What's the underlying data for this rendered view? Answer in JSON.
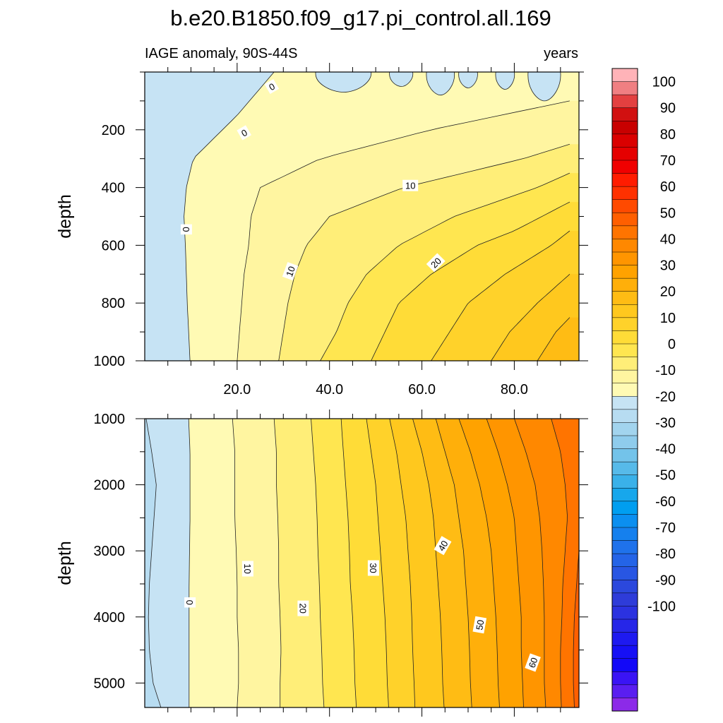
{
  "figure": {
    "title": "b.e20.B1850.f09_g17.pi_control.all.169",
    "left_subtitle": "IAGE anomaly, 90S-44S",
    "right_subtitle": "years"
  },
  "chart_data": [
    {
      "type": "heatmap",
      "name": "upper",
      "ylabel": "depth",
      "xlabel": "",
      "xlim": [
        0,
        94
      ],
      "ylim": [
        0,
        1000
      ],
      "y_inverted": true,
      "xticks": [
        20,
        40,
        60,
        80
      ],
      "xtick_labels": [
        "20.0",
        "40.0",
        "60.0",
        "80.0"
      ],
      "yticks": [
        200,
        400,
        600,
        800,
        1000
      ],
      "ytick_labels": [
        "200",
        "400",
        "600",
        "800",
        "1000"
      ],
      "contour_interval": 5,
      "contours": [
        {
          "level": 0,
          "depth": [
            0,
            150,
            300,
            400,
            500,
            600,
            700,
            800,
            900,
            1000
          ],
          "x": [
            28,
            20,
            10.5,
            9,
            8.5,
            8.8,
            9,
            9.2,
            9.5,
            9.8
          ]
        },
        {
          "level": 5,
          "depth": [
            100,
            200,
            300,
            400,
            500,
            600,
            700,
            800,
            900,
            1000
          ],
          "x": [
            92,
            62,
            38,
            25,
            23,
            22.5,
            21.5,
            21,
            20.5,
            20
          ]
        },
        {
          "level": 10,
          "depth": [
            250,
            300,
            400,
            500,
            600,
            700,
            800,
            900,
            1000
          ],
          "x": [
            92,
            82,
            56,
            40,
            35,
            32.5,
            31,
            30,
            29
          ]
        },
        {
          "level": 15,
          "depth": [
            350,
            400,
            500,
            600,
            700,
            800,
            900,
            1000
          ],
          "x": [
            92,
            85,
            67,
            55,
            48,
            44,
            41.5,
            38
          ]
        },
        {
          "level": 20,
          "depth": [
            450,
            550,
            600,
            700,
            800,
            900,
            1000
          ],
          "x": [
            92,
            80,
            72,
            62,
            55,
            52,
            49
          ]
        },
        {
          "level": 25,
          "depth": [
            550,
            600,
            700,
            800,
            900,
            1000
          ],
          "x": [
            92,
            88,
            78,
            70,
            66,
            62
          ]
        },
        {
          "level": 30,
          "depth": [
            700,
            800,
            900,
            1000
          ],
          "x": [
            92,
            85,
            79,
            75
          ]
        },
        {
          "level": 35,
          "depth": [
            850,
            900,
            1000
          ],
          "x": [
            92,
            89,
            85
          ]
        }
      ],
      "negative_patches": [
        {
          "x": [
            37,
            49
          ],
          "depth": [
            0,
            70
          ]
        },
        {
          "x": [
            53,
            58
          ],
          "depth": [
            0,
            50
          ]
        },
        {
          "x": [
            61,
            67
          ],
          "depth": [
            0,
            80
          ]
        },
        {
          "x": [
            68,
            72
          ],
          "depth": [
            0,
            55
          ]
        },
        {
          "x": [
            76,
            80
          ],
          "depth": [
            0,
            60
          ]
        },
        {
          "x": [
            83,
            90
          ],
          "depth": [
            0,
            100
          ]
        }
      ],
      "contour_labels": [
        {
          "text": "0",
          "x": 27.5,
          "depth": 50,
          "angle": -30
        },
        {
          "text": "0",
          "x": 21.5,
          "depth": 210,
          "angle": -30
        },
        {
          "text": "0",
          "x": 9,
          "depth": 545,
          "angle": 90
        },
        {
          "text": "10",
          "x": 57.5,
          "depth": 393,
          "angle": 0
        },
        {
          "text": "10",
          "x": 31.5,
          "depth": 690,
          "angle": -70
        },
        {
          "text": "20",
          "x": 63,
          "depth": 660,
          "angle": -45
        }
      ]
    },
    {
      "type": "heatmap",
      "name": "lower",
      "ylabel": "depth",
      "xlabel": "",
      "xlim": [
        0,
        94
      ],
      "ylim": [
        1000,
        5370
      ],
      "y_inverted": true,
      "yticks": [
        1000,
        2000,
        3000,
        4000,
        5000
      ],
      "ytick_labels": [
        "1000",
        "2000",
        "3000",
        "4000",
        "5000"
      ],
      "contour_interval": 5,
      "contours": [
        {
          "level": -5,
          "depth": [
            1000,
            1500,
            2000,
            2500,
            3000,
            3500,
            4000,
            4500,
            5000,
            5370
          ],
          "x": [
            0.3,
            1.5,
            2.5,
            2,
            1.5,
            1,
            0.8,
            1,
            1.8,
            3.5
          ]
        },
        {
          "level": 0,
          "depth": [
            1000,
            1500,
            2000,
            2500,
            3000,
            3500,
            4000,
            4500,
            5000,
            5370
          ],
          "x": [
            9.5,
            9.8,
            9.8,
            9.8,
            9.7,
            9.6,
            9.6,
            9.6,
            9.6,
            9.6
          ]
        },
        {
          "level": 5,
          "depth": [
            1000,
            1500,
            2000,
            2500,
            3000,
            3500,
            4000,
            4500,
            5000,
            5370
          ],
          "x": [
            19,
            19.5,
            19.5,
            19.5,
            19.8,
            20,
            20,
            20.3,
            20.3,
            20
          ]
        },
        {
          "level": 10,
          "depth": [
            1000,
            1500,
            2000,
            2500,
            3000,
            3500,
            4000,
            4500,
            5000,
            5370
          ],
          "x": [
            28,
            28.5,
            28.5,
            28.8,
            29,
            29,
            29.3,
            29.5,
            29.3,
            29.3
          ]
        },
        {
          "level": 15,
          "depth": [
            1000,
            1500,
            2000,
            2500,
            3000,
            3500,
            4000,
            4500,
            5000,
            5370
          ],
          "x": [
            36,
            36.5,
            37,
            37.3,
            37.5,
            37.8,
            38,
            38.3,
            38.5,
            38.8
          ]
        },
        {
          "level": 20,
          "depth": [
            1000,
            1500,
            2000,
            2500,
            3000,
            3500,
            4000,
            4500,
            5000,
            5370
          ],
          "x": [
            42.5,
            43,
            43.5,
            44,
            44.3,
            44.5,
            45,
            45.3,
            45.5,
            45.8
          ]
        },
        {
          "level": 25,
          "depth": [
            1000,
            1500,
            2000,
            2500,
            3000,
            3500,
            4000,
            4500,
            5000,
            5370
          ],
          "x": [
            48,
            49,
            50,
            50.5,
            51,
            51.5,
            52,
            52.3,
            52.5,
            52.8
          ]
        },
        {
          "level": 30,
          "depth": [
            1000,
            1500,
            2000,
            2500,
            3000,
            3500,
            4000,
            4500,
            5000,
            5370
          ],
          "x": [
            53,
            54.5,
            55.5,
            56.5,
            57,
            57.5,
            57.8,
            58,
            58.3,
            58.5
          ]
        },
        {
          "level": 35,
          "depth": [
            1000,
            1500,
            2000,
            2500,
            3000,
            3500,
            4000,
            4500,
            5000,
            5370
          ],
          "x": [
            58,
            60,
            61.5,
            62.5,
            63,
            63.5,
            64,
            64.3,
            64.5,
            64.8
          ]
        },
        {
          "level": 40,
          "depth": [
            1000,
            1500,
            2000,
            2500,
            3000,
            3500,
            4000,
            4500,
            5000,
            5370
          ],
          "x": [
            63,
            65,
            67,
            68,
            69,
            69.5,
            70,
            70.3,
            70.5,
            70.8
          ]
        },
        {
          "level": 45,
          "depth": [
            1000,
            1500,
            2000,
            2500,
            3000,
            3500,
            4000,
            4500,
            5000,
            5370
          ],
          "x": [
            68,
            70.5,
            72.5,
            74,
            75,
            75.5,
            76,
            76.3,
            76.5,
            76.8
          ]
        },
        {
          "level": 50,
          "depth": [
            1000,
            1500,
            2000,
            2500,
            3000,
            3500,
            4000,
            4500,
            5000,
            5370
          ],
          "x": [
            74,
            76.5,
            78.5,
            80,
            80.5,
            81,
            81.5,
            81.5,
            81.8,
            82
          ]
        },
        {
          "level": 55,
          "depth": [
            1000,
            1500,
            2000,
            2500,
            3000,
            3500,
            4000,
            4500,
            5000,
            5370
          ],
          "x": [
            80,
            82.5,
            84.5,
            85.5,
            86,
            86.3,
            86.5,
            86.5,
            86.5,
            86.8
          ]
        },
        {
          "level": 60,
          "depth": [
            1000,
            1500,
            2000,
            2500,
            3000,
            3500,
            4000,
            4500,
            5000,
            5370
          ],
          "x": [
            88,
            90,
            91,
            91.5,
            91,
            90.5,
            90.3,
            90,
            90,
            90.2
          ]
        },
        {
          "level": 65,
          "depth": [
            3000,
            3500,
            4000,
            4500,
            5000,
            5370
          ],
          "x": [
            94,
            93.5,
            93,
            92.8,
            92.8,
            93
          ]
        }
      ],
      "contour_labels": [
        {
          "text": "0",
          "x": 9.8,
          "depth": 3780,
          "angle": 90
        },
        {
          "text": "10",
          "x": 22.3,
          "depth": 3270,
          "angle": 90
        },
        {
          "text": "20",
          "x": 34.3,
          "depth": 3870,
          "angle": 90
        },
        {
          "text": "30",
          "x": 49.5,
          "depth": 3260,
          "angle": 90
        },
        {
          "text": "40",
          "x": 64.5,
          "depth": 2920,
          "angle": -60
        },
        {
          "text": "50",
          "x": 72.5,
          "depth": 4120,
          "angle": -80
        },
        {
          "text": "60",
          "x": 84,
          "depth": 4690,
          "angle": -70
        }
      ]
    }
  ],
  "colorbar": {
    "labels": [
      "100",
      "90",
      "80",
      "70",
      "60",
      "50",
      "40",
      "30",
      "20",
      "10",
      "0",
      "-10",
      "-20",
      "-30",
      "-40",
      "-50",
      "-60",
      "-70",
      "-80",
      "-90",
      "-100"
    ],
    "colors_top_to_bottom": [
      "#FFB3B8",
      "#F07F82",
      "#E34040",
      "#D11010",
      "#C80000",
      "#DA0000",
      "#E50000",
      "#F00000",
      "#FF1C00",
      "#FF3100",
      "#FF4A00",
      "#FF5F00",
      "#FF7400",
      "#FF8800",
      "#FF9500",
      "#FFA200",
      "#FFAF0A",
      "#FFBC14",
      "#FFC81E",
      "#FFD22A",
      "#FFDC37",
      "#FFE650",
      "#FFEE78",
      "#FFF5A0",
      "#FFFAB4",
      "#C6E3F4",
      "#B7DCF1",
      "#A2D4EE",
      "#8FCCEC",
      "#73C3EA",
      "#57BAE9",
      "#3AB1E9",
      "#17A7EC",
      "#009EF0",
      "#0B8FF0",
      "#1580EE",
      "#1F72EB",
      "#2464E7",
      "#2856E3",
      "#2B48DD",
      "#2E3CD9",
      "#2B32E0",
      "#2626E8",
      "#1E1AF0",
      "#1610F5",
      "#1208F8",
      "#3A14F5",
      "#5A1EF0",
      "#8C2AE8"
    ]
  }
}
